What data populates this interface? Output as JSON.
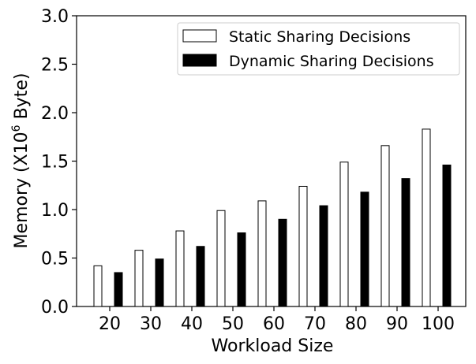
{
  "chart_data": {
    "type": "bar",
    "title": "",
    "xlabel": "Workload Size",
    "ylabel_prefix": "Memory (X10",
    "ylabel_exponent": "6",
    "ylabel_suffix": " Byte)",
    "categories": [
      "20",
      "30",
      "40",
      "50",
      "60",
      "70",
      "80",
      "90",
      "100"
    ],
    "series": [
      {
        "name": "Static Sharing Decisions",
        "values": [
          0.42,
          0.58,
          0.78,
          0.99,
          1.09,
          1.24,
          1.49,
          1.66,
          1.83
        ],
        "fill": "#ffffff",
        "stroke": "#000000"
      },
      {
        "name": "Dynamic Sharing Decisions",
        "values": [
          0.35,
          0.49,
          0.62,
          0.76,
          0.9,
          1.04,
          1.18,
          1.32,
          1.46
        ],
        "fill": "#000000",
        "stroke": "#000000"
      }
    ],
    "ylim": [
      0,
      3.0
    ],
    "yticks": [
      "0.0",
      "0.5",
      "1.0",
      "1.5",
      "2.0",
      "2.5",
      "3.0"
    ],
    "grid": false,
    "legend_position": "top-right"
  }
}
